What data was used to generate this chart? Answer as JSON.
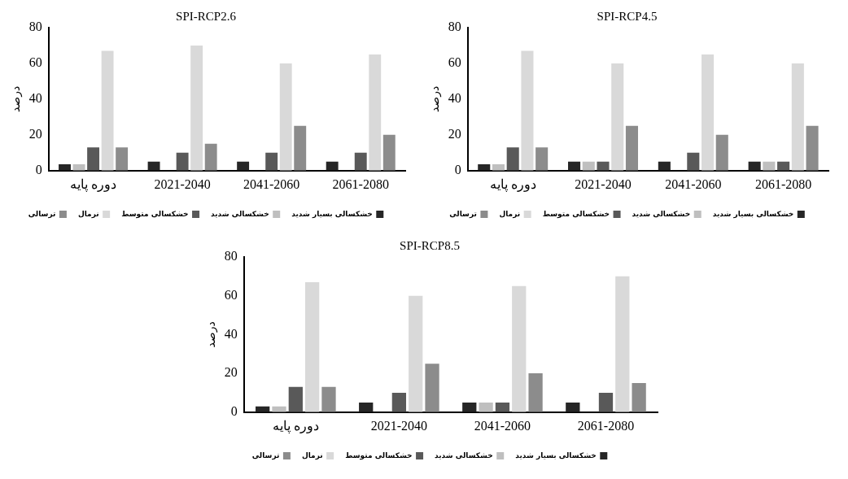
{
  "chart_data": [
    {
      "type": "bar",
      "title": "SPI-RCP2.6",
      "ylabel": "درصد",
      "categories": [
        "دوره پایه",
        "2021-2040",
        "2041-2060",
        "2061-2080"
      ],
      "ylim": [
        0,
        80
      ],
      "yticks": [
        0,
        20,
        40,
        60,
        80
      ],
      "grid": false,
      "legend": "bottom",
      "series": [
        {
          "name": "خشکسالی بسیار شدید",
          "color": "#262626",
          "values": [
            3.5,
            5,
            5,
            5
          ]
        },
        {
          "name": "خشکسالی شدید",
          "color": "#bfbfbf",
          "values": [
            3.5,
            0,
            0,
            0
          ]
        },
        {
          "name": "خشکسالی متوسط",
          "color": "#595959",
          "values": [
            13,
            10,
            10,
            10
          ]
        },
        {
          "name": "نرمال",
          "color": "#d9d9d9",
          "values": [
            67,
            70,
            60,
            65
          ]
        },
        {
          "name": "ترسالی",
          "color": "#8c8c8c",
          "values": [
            13,
            15,
            25,
            20
          ]
        }
      ]
    },
    {
      "type": "bar",
      "title": "SPI-RCP4.5",
      "ylabel": "درصد",
      "categories": [
        "دوره پایه",
        "2021-2040",
        "2041-2060",
        "2061-2080"
      ],
      "ylim": [
        0,
        80
      ],
      "yticks": [
        0,
        20,
        40,
        60,
        80
      ],
      "grid": false,
      "legend": "bottom",
      "series": [
        {
          "name": "خشکسالی بسیار شدید",
          "color": "#262626",
          "values": [
            3.5,
            5,
            5,
            5
          ]
        },
        {
          "name": "خشکسالی شدید",
          "color": "#bfbfbf",
          "values": [
            3.5,
            5,
            0,
            5
          ]
        },
        {
          "name": "خشکسالی متوسط",
          "color": "#595959",
          "values": [
            13,
            5,
            10,
            5
          ]
        },
        {
          "name": "نرمال",
          "color": "#d9d9d9",
          "values": [
            67,
            60,
            65,
            60
          ]
        },
        {
          "name": "ترسالی",
          "color": "#8c8c8c",
          "values": [
            13,
            25,
            20,
            25
          ]
        }
      ]
    },
    {
      "type": "bar",
      "title": "SPI-RCP8.5",
      "ylabel": "درصد",
      "categories": [
        "دوره پایه",
        "2021-2040",
        "2041-2060",
        "2061-2080"
      ],
      "ylim": [
        0,
        80
      ],
      "yticks": [
        0,
        20,
        40,
        60,
        80
      ],
      "grid": false,
      "legend": "bottom",
      "series": [
        {
          "name": "خشکسالی بسیار شدید",
          "color": "#262626",
          "values": [
            3,
            5,
            5,
            5
          ]
        },
        {
          "name": "خشکسالی شدید",
          "color": "#bfbfbf",
          "values": [
            3,
            0,
            5,
            0
          ]
        },
        {
          "name": "خشکسالی متوسط",
          "color": "#595959",
          "values": [
            13,
            10,
            5,
            10
          ]
        },
        {
          "name": "نرمال",
          "color": "#d9d9d9",
          "values": [
            67,
            60,
            65,
            70
          ]
        },
        {
          "name": "ترسالی",
          "color": "#8c8c8c",
          "values": [
            13,
            25,
            20,
            15
          ]
        }
      ]
    }
  ]
}
